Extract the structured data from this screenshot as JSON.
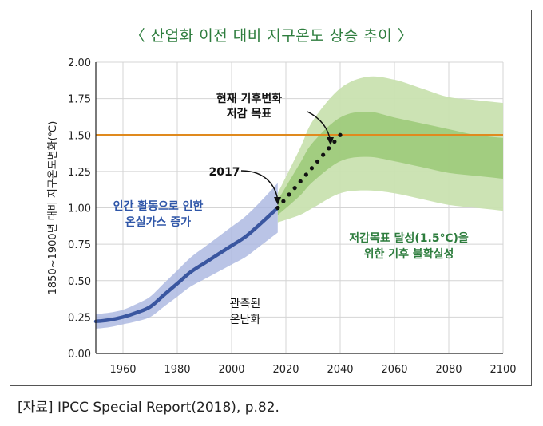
{
  "title": "〈 산업화 이전 대비 지구온도 상승 추이 〉",
  "source": "[자료] IPCC Special Report(2018), p.82.",
  "colors": {
    "title": "#2e7d3e",
    "observed_line": "#3a56a0",
    "observed_band": "#a9b5e0",
    "target_line": "#e08a1e",
    "projection_outer": "#c9e2b0",
    "projection_inner": "#9dca7a",
    "human_text": "#2f56a8",
    "uncertainty_text": "#2e7d3e"
  },
  "chart_data": {
    "type": "line",
    "ylabel": "1850~1900년 대비 지구온도변화(℃)",
    "xlabel": "",
    "xlim": [
      1950,
      2100
    ],
    "ylim": [
      0,
      2.0
    ],
    "x_ticks": [
      1960,
      1980,
      2000,
      2020,
      2040,
      2060,
      2080,
      2100
    ],
    "y_ticks": [
      2.0,
      1.75,
      1.5,
      1.25,
      1.0,
      0.75,
      0.5,
      0.25,
      0.0
    ],
    "y_tick_labels": [
      "2.00",
      "1.75",
      "1.50",
      "1.25",
      "1.00",
      "0.75",
      "0.50",
      "0.25",
      "0.00"
    ],
    "observed_trend": {
      "x": [
        1950,
        1955,
        1960,
        1965,
        1970,
        1975,
        1980,
        1985,
        1990,
        1995,
        2000,
        2005,
        2010,
        2017
      ],
      "y": [
        0.22,
        0.23,
        0.25,
        0.28,
        0.32,
        0.4,
        0.48,
        0.56,
        0.62,
        0.68,
        0.74,
        0.8,
        0.88,
        1.0
      ],
      "band_half_width": [
        0.05,
        0.05,
        0.05,
        0.06,
        0.07,
        0.08,
        0.09,
        0.1,
        0.11,
        0.12,
        0.13,
        0.14,
        0.15,
        0.17
      ]
    },
    "projection_dotted": {
      "x": [
        2017,
        2040
      ],
      "y": [
        1.0,
        1.5
      ]
    },
    "target_level": 1.5,
    "projection_outer_band": {
      "x": [
        2017,
        2025,
        2030,
        2040,
        2050,
        2060,
        2070,
        2080,
        2090,
        2100
      ],
      "upper": [
        1.1,
        1.4,
        1.6,
        1.82,
        1.9,
        1.88,
        1.82,
        1.76,
        1.74,
        1.72
      ],
      "lower": [
        0.9,
        0.95,
        1.0,
        1.1,
        1.12,
        1.1,
        1.06,
        1.02,
        1.0,
        0.98
      ]
    },
    "projection_inner_band": {
      "x": [
        2017,
        2025,
        2030,
        2040,
        2050,
        2060,
        2070,
        2080,
        2090,
        2100
      ],
      "upper": [
        1.05,
        1.3,
        1.45,
        1.62,
        1.66,
        1.62,
        1.58,
        1.54,
        1.5,
        1.48
      ],
      "lower": [
        0.95,
        1.08,
        1.18,
        1.32,
        1.35,
        1.32,
        1.28,
        1.24,
        1.22,
        1.2
      ]
    },
    "annotations": {
      "goal": [
        "현재 기후변화",
        "저감 목표"
      ],
      "year_2017": "2017",
      "human_activity": [
        "인간 활동으로 인한",
        "온실가스 증가"
      ],
      "observed": [
        "관측된",
        "온난화"
      ],
      "uncertainty": [
        "저감목표 달성(1.5℃)을",
        "위한 기후 불확실성"
      ]
    }
  }
}
